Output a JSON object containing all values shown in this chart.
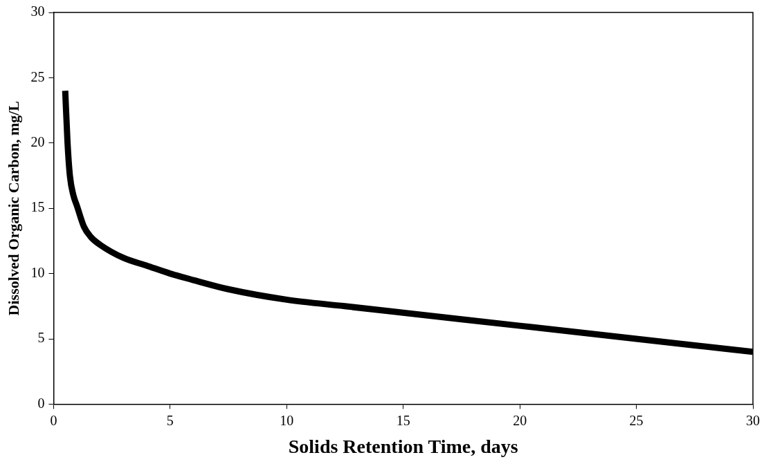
{
  "chart_data": {
    "type": "line",
    "xlabel": "Solids Retention Time, days",
    "ylabel": "Dissolved Organic Carbon, mg/L",
    "xlim": [
      0,
      30
    ],
    "xticks": [
      0,
      5,
      10,
      15,
      20,
      25,
      30
    ],
    "ylim": [
      0,
      30
    ],
    "yticks": [
      0,
      5,
      10,
      15,
      20,
      25,
      30
    ],
    "marker": "none",
    "line_style": "solid",
    "legend": false,
    "series": [
      {
        "color": "#000000",
        "x": [
          0.5,
          0.6,
          0.7,
          0.85,
          1,
          1.3,
          1.6,
          2,
          3,
          4,
          5,
          6,
          7.5,
          10,
          12.5,
          15,
          20,
          25,
          30
        ],
        "values": [
          24,
          20,
          17.5,
          16,
          15.2,
          13.6,
          12.8,
          12.2,
          11.2,
          10.6,
          10,
          9.5,
          8.8,
          8,
          7.5,
          7,
          6,
          5,
          4
        ]
      }
    ]
  }
}
